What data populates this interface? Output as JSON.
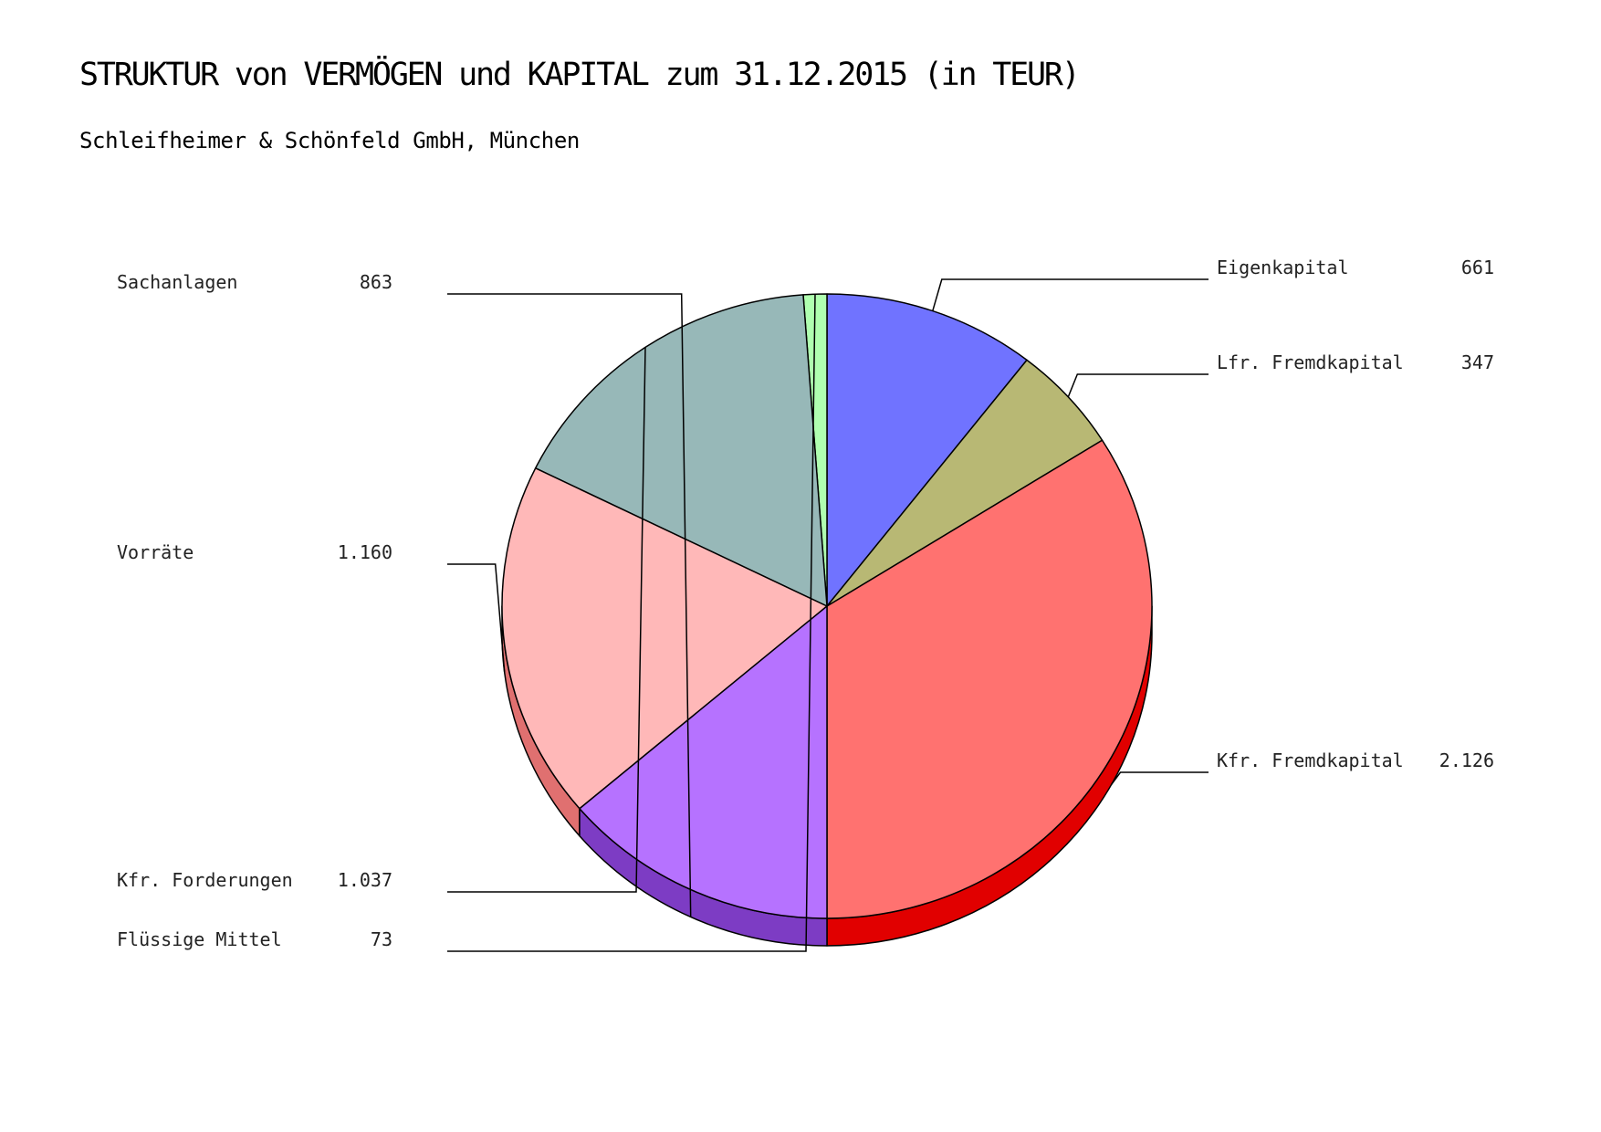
{
  "chart_data": {
    "type": "pie",
    "title": "STRUKTUR von VERMÖGEN und KAPITAL zum 31.12.2015 (in TEUR)",
    "subtitle": "Schleifheimer & Schönfeld GmbH, München",
    "right_half": [
      {
        "name": "Eigenkapital",
        "value": 661,
        "display": "661",
        "color": "#7073ff",
        "dark": "#3a3db8"
      },
      {
        "name": "Lfr. Fremdkapital",
        "value": 347,
        "display": "347",
        "color": "#b8b874",
        "dark": "#77773e"
      },
      {
        "name": "Kfr. Fremdkapital",
        "value": 2126,
        "display": "2.126",
        "color": "#ff7270",
        "dark": "#e10000"
      }
    ],
    "left_half": [
      {
        "name": "Flüssige Mittel",
        "value": 73,
        "display": "73",
        "color": "#b0ffb0",
        "dark": "#5ed45e"
      },
      {
        "name": "Kfr. Forderungen",
        "value": 1037,
        "display": "1.037",
        "color": "#97b8b8",
        "dark": "#367370"
      },
      {
        "name": "Vorräte",
        "value": 1160,
        "display": "1.160",
        "color": "#ffb8b8",
        "dark": "#e07070"
      },
      {
        "name": "Sachanlagen",
        "value": 863,
        "display": "863",
        "color": "#b672ff",
        "dark": "#7d3cc4"
      }
    ]
  }
}
